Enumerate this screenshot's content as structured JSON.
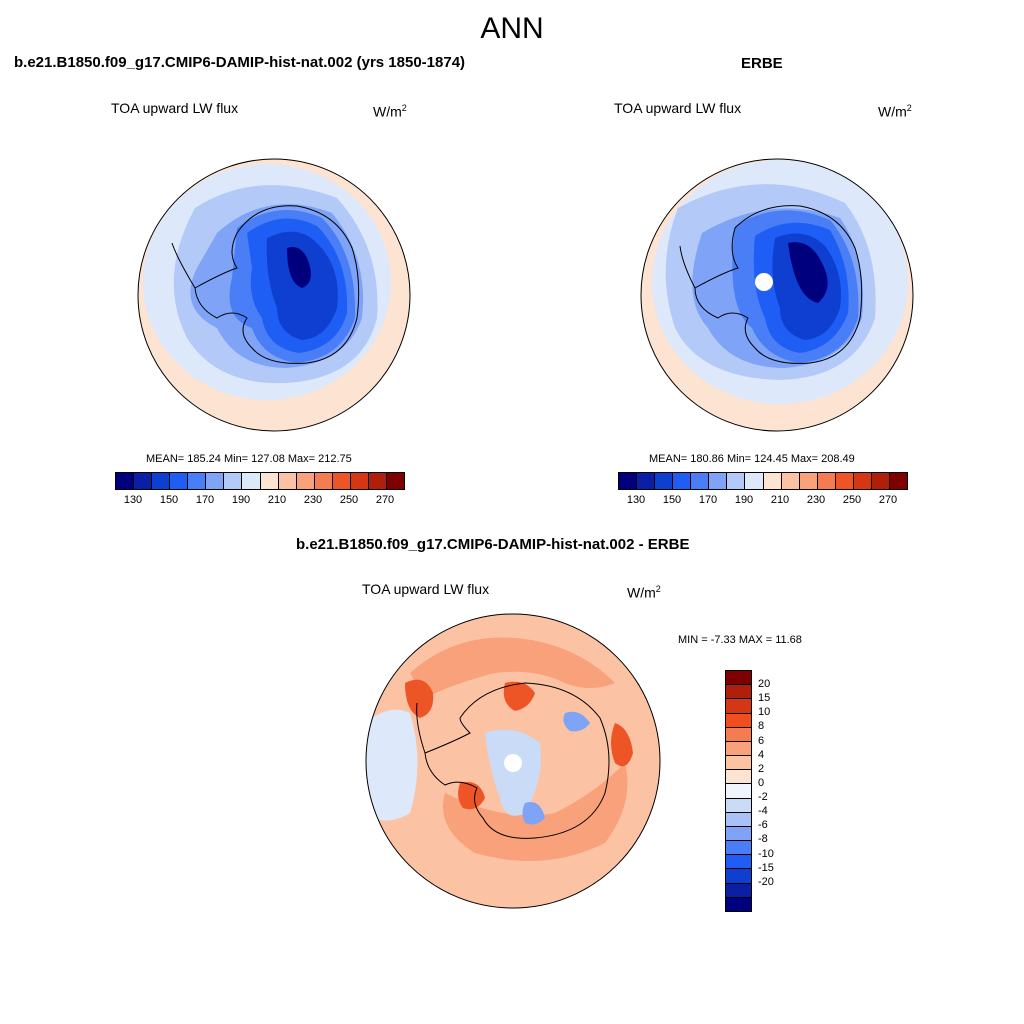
{
  "title": "ANN",
  "panels": [
    {
      "title": "b.e21.B1850.f09_g17.CMIP6-DAMIP-hist-nat.002 (yrs 1850-1874)",
      "variable": "TOA upward LW flux",
      "units_base": "W/m",
      "units_exp": "2",
      "stats": "MEAN= 185.24  Min= 127.08  Max= 212.75"
    },
    {
      "title": "ERBE",
      "variable": "TOA upward LW flux",
      "units_base": "W/m",
      "units_exp": "2",
      "stats": "MEAN= 180.86  Min= 124.45  Max= 208.49"
    },
    {
      "title": "b.e21.B1850.f09_g17.CMIP6-DAMIP-hist-nat.002 - ERBE",
      "variable": "TOA upward LW flux",
      "units_base": "W/m",
      "units_exp": "2",
      "stats": "MIN =  -7.33 MAX =  11.68"
    }
  ],
  "colorbar_main": {
    "colors": [
      "#00007f",
      "#0b1fa4",
      "#0f3fd0",
      "#1e5ef5",
      "#4a7ef7",
      "#7fa3f7",
      "#b3c9f7",
      "#dde8fb",
      "#fde3d2",
      "#fbc3a4",
      "#f8a17a",
      "#f57b50",
      "#ee5526",
      "#d53714",
      "#b01f0a",
      "#7f0000"
    ],
    "ticks": [
      "130",
      "150",
      "170",
      "190",
      "210",
      "230",
      "250",
      "270"
    ]
  },
  "colorbar_diff": {
    "colors": [
      "#7f0000",
      "#b01f0a",
      "#d53714",
      "#f24e1d",
      "#f57b50",
      "#f8a17a",
      "#fbc3a4",
      "#fde3d2",
      "#f0f4fc",
      "#cadbf7",
      "#a8c2f5",
      "#7fa3f7",
      "#4a7ef7",
      "#1e5ef5",
      "#0f3fd0",
      "#0b1fa4",
      "#00007f"
    ],
    "ticks": [
      "20",
      "15",
      "10",
      "8",
      "6",
      "4",
      "2",
      "0",
      "-2",
      "-4",
      "-6",
      "-8",
      "-10",
      "-15",
      "-20"
    ]
  },
  "map_colors": {
    "ocean_far": "#fde3d2",
    "ocean": "#dde8fb",
    "band1": "#b3c9f7",
    "band2": "#7fa3f7",
    "band3": "#4a7ef7",
    "band4": "#1e5ef5",
    "band5": "#0f3fd0",
    "core": "#00007f",
    "diff_bg": "#fbc3a4",
    "diff_mid": "#f8a17a",
    "diff_hot": "#ee5526",
    "diff_cool": "#cadbf7",
    "diff_cold": "#7fa3f7"
  }
}
